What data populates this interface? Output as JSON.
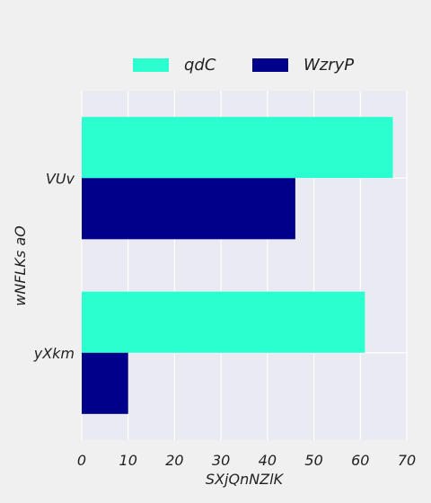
{
  "chart_data": {
    "type": "bar",
    "orientation": "horizontal",
    "categories": [
      "VUv",
      "yXkm"
    ],
    "series": [
      {
        "name": "qdC",
        "values": [
          67,
          61
        ],
        "color": "#2bffd0"
      },
      {
        "name": "WzryP",
        "values": [
          46,
          10
        ],
        "color": "#00008b"
      }
    ],
    "xlabel": "SXjQnNZlK",
    "ylabel": "wNFLKs aO",
    "xlim": [
      0,
      70
    ],
    "xticks": [
      "0",
      "10",
      "20",
      "30",
      "40",
      "50",
      "60",
      "70"
    ],
    "grid": true,
    "legend": "top-center",
    "plot_bg": "#eaeaf2"
  }
}
